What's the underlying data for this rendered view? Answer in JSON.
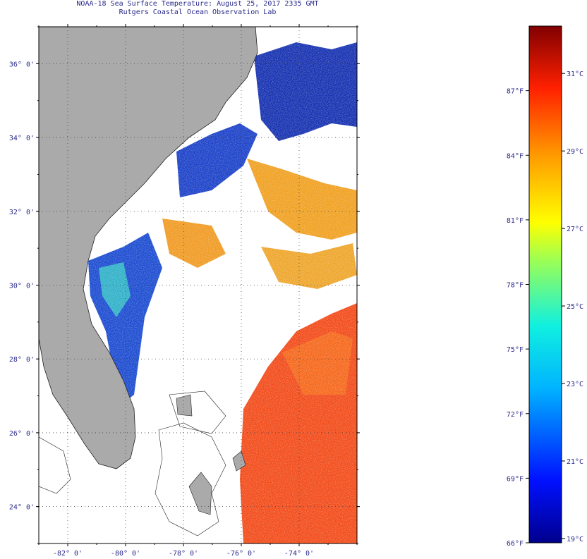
{
  "header": {
    "line1": "NOAA-18 Sea Surface Temperature:  August 25, 2017 2335 GMT",
    "line2": "Rutgers Coastal Ocean Observation Lab"
  },
  "map": {
    "lat_range": [
      23.0,
      37.0
    ],
    "lon_range": [
      -83.0,
      -72.0
    ],
    "lat_labels": [
      {
        "value": 36,
        "text": "36° 0'"
      },
      {
        "value": 34,
        "text": "34° 0'"
      },
      {
        "value": 32,
        "text": "32° 0'"
      },
      {
        "value": 30,
        "text": "30° 0'"
      },
      {
        "value": 28,
        "text": "28° 0'"
      },
      {
        "value": 26,
        "text": "26° 0'"
      },
      {
        "value": 24,
        "text": "24° 0'"
      }
    ],
    "lon_labels": [
      {
        "value": -82,
        "text": "-82° 0'"
      },
      {
        "value": -80,
        "text": "-80° 0'"
      },
      {
        "value": -78,
        "text": "-78° 0'"
      },
      {
        "value": -76,
        "text": "-76° 0'"
      },
      {
        "value": -74,
        "text": "-74° 0'"
      }
    ],
    "colors": {
      "land": "#aaaaaa",
      "ocean_no_data": "#ffffff",
      "grid": "#555555"
    }
  },
  "colorbar": {
    "min_f": 66,
    "max_f": 90,
    "fahrenheit_labels": [
      "87°F",
      "84°F",
      "81°F",
      "78°F",
      "75°F",
      "72°F",
      "69°F",
      "66°F"
    ],
    "fahrenheit_values": [
      87,
      84,
      81,
      78,
      75,
      72,
      69,
      66
    ],
    "celsius_labels": [
      "31°C",
      "29°C",
      "27°C",
      "25°C",
      "23°C",
      "21°C",
      "19°C"
    ],
    "celsius_values": [
      31,
      29,
      27,
      25,
      23,
      21,
      19
    ]
  }
}
